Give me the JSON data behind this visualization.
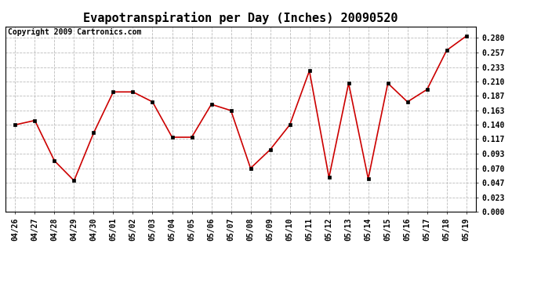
{
  "title": "Evapotranspiration per Day (Inches) 20090520",
  "copyright": "Copyright 2009 Cartronics.com",
  "dates": [
    "04/26",
    "04/27",
    "04/28",
    "04/29",
    "04/30",
    "05/01",
    "05/02",
    "05/03",
    "05/04",
    "05/05",
    "05/06",
    "05/07",
    "05/08",
    "05/09",
    "05/10",
    "05/11",
    "05/12",
    "05/13",
    "05/14",
    "05/15",
    "05/16",
    "05/17",
    "05/18",
    "05/19"
  ],
  "values": [
    0.14,
    0.147,
    0.082,
    0.05,
    0.127,
    0.193,
    0.193,
    0.177,
    0.12,
    0.12,
    0.173,
    0.163,
    0.07,
    0.1,
    0.14,
    0.227,
    0.055,
    0.207,
    0.053,
    0.207,
    0.177,
    0.197,
    0.26,
    0.283
  ],
  "line_color": "#cc0000",
  "marker": "s",
  "marker_color": "#000000",
  "marker_size": 2.5,
  "ylim": [
    0.0,
    0.2985
  ],
  "yticks": [
    0.0,
    0.023,
    0.047,
    0.07,
    0.093,
    0.117,
    0.14,
    0.163,
    0.187,
    0.21,
    0.233,
    0.257,
    0.28
  ],
  "grid_color": "#bbbbbb",
  "grid_linestyle": "--",
  "bg_color": "#ffffff",
  "title_fontsize": 11,
  "tick_fontsize": 7,
  "copyright_fontsize": 7
}
